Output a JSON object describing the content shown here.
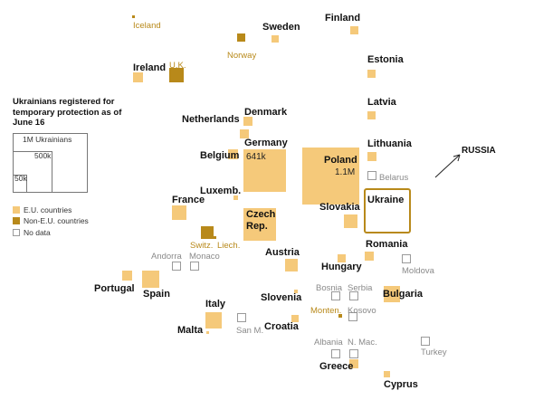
{
  "legend": {
    "title": "Ukrainians registered for temporary protection as of June 16",
    "sizes": [
      "1M Ukrainians",
      "500k",
      "50k"
    ],
    "categories": [
      {
        "label": "E.U. countries",
        "color": "#f5c97a"
      },
      {
        "label": "Non-E.U. countries",
        "color": "#b8891a"
      },
      {
        "label": "No data",
        "color": "#ffffff"
      }
    ]
  },
  "russia": {
    "label": "RUSSIA",
    "arrow": "arrow-northeast"
  },
  "countries": [
    {
      "name": "Iceland",
      "cat": "noneu"
    },
    {
      "name": "Sweden",
      "cat": "eu"
    },
    {
      "name": "Finland",
      "cat": "eu"
    },
    {
      "name": "Norway",
      "cat": "noneu"
    },
    {
      "name": "Ireland",
      "cat": "eu"
    },
    {
      "name": "U.K.",
      "cat": "noneu"
    },
    {
      "name": "Estonia",
      "cat": "eu"
    },
    {
      "name": "Latvia",
      "cat": "eu"
    },
    {
      "name": "Denmark",
      "cat": "eu"
    },
    {
      "name": "Netherlands",
      "cat": "eu"
    },
    {
      "name": "Lithuania",
      "cat": "eu"
    },
    {
      "name": "Germany",
      "cat": "eu",
      "value_label": "641k"
    },
    {
      "name": "Belgium",
      "cat": "eu"
    },
    {
      "name": "Poland",
      "cat": "eu",
      "value_label": "1.1M"
    },
    {
      "name": "Belarus",
      "cat": "nodata"
    },
    {
      "name": "Luxemb.",
      "cat": "eu"
    },
    {
      "name": "France",
      "cat": "eu"
    },
    {
      "name": "Czech Rep.",
      "cat": "eu"
    },
    {
      "name": "Slovakia",
      "cat": "eu"
    },
    {
      "name": "Ukraine",
      "cat": "ukraine"
    },
    {
      "name": "Switz.",
      "cat": "noneu"
    },
    {
      "name": "Liech.",
      "cat": "noneu"
    },
    {
      "name": "Romania",
      "cat": "eu"
    },
    {
      "name": "Andorra",
      "cat": "nodata"
    },
    {
      "name": "Monaco",
      "cat": "nodata"
    },
    {
      "name": "Austria",
      "cat": "eu"
    },
    {
      "name": "Hungary",
      "cat": "eu"
    },
    {
      "name": "Moldova",
      "cat": "nodata"
    },
    {
      "name": "Portugal",
      "cat": "eu"
    },
    {
      "name": "Spain",
      "cat": "eu"
    },
    {
      "name": "Slovenia",
      "cat": "eu"
    },
    {
      "name": "Bosnia",
      "cat": "nodata"
    },
    {
      "name": "Serbia",
      "cat": "nodata"
    },
    {
      "name": "Bulgaria",
      "cat": "eu"
    },
    {
      "name": "Italy",
      "cat": "eu"
    },
    {
      "name": "Monten.",
      "cat": "noneu"
    },
    {
      "name": "Kosovo",
      "cat": "nodata"
    },
    {
      "name": "Malta",
      "cat": "eu"
    },
    {
      "name": "San M.",
      "cat": "nodata"
    },
    {
      "name": "Croatia",
      "cat": "eu"
    },
    {
      "name": "Albania",
      "cat": "nodata"
    },
    {
      "name": "N. Mac.",
      "cat": "nodata"
    },
    {
      "name": "Turkey",
      "cat": "nodata"
    },
    {
      "name": "Greece",
      "cat": "eu"
    },
    {
      "name": "Cyprus",
      "cat": "eu"
    }
  ]
}
